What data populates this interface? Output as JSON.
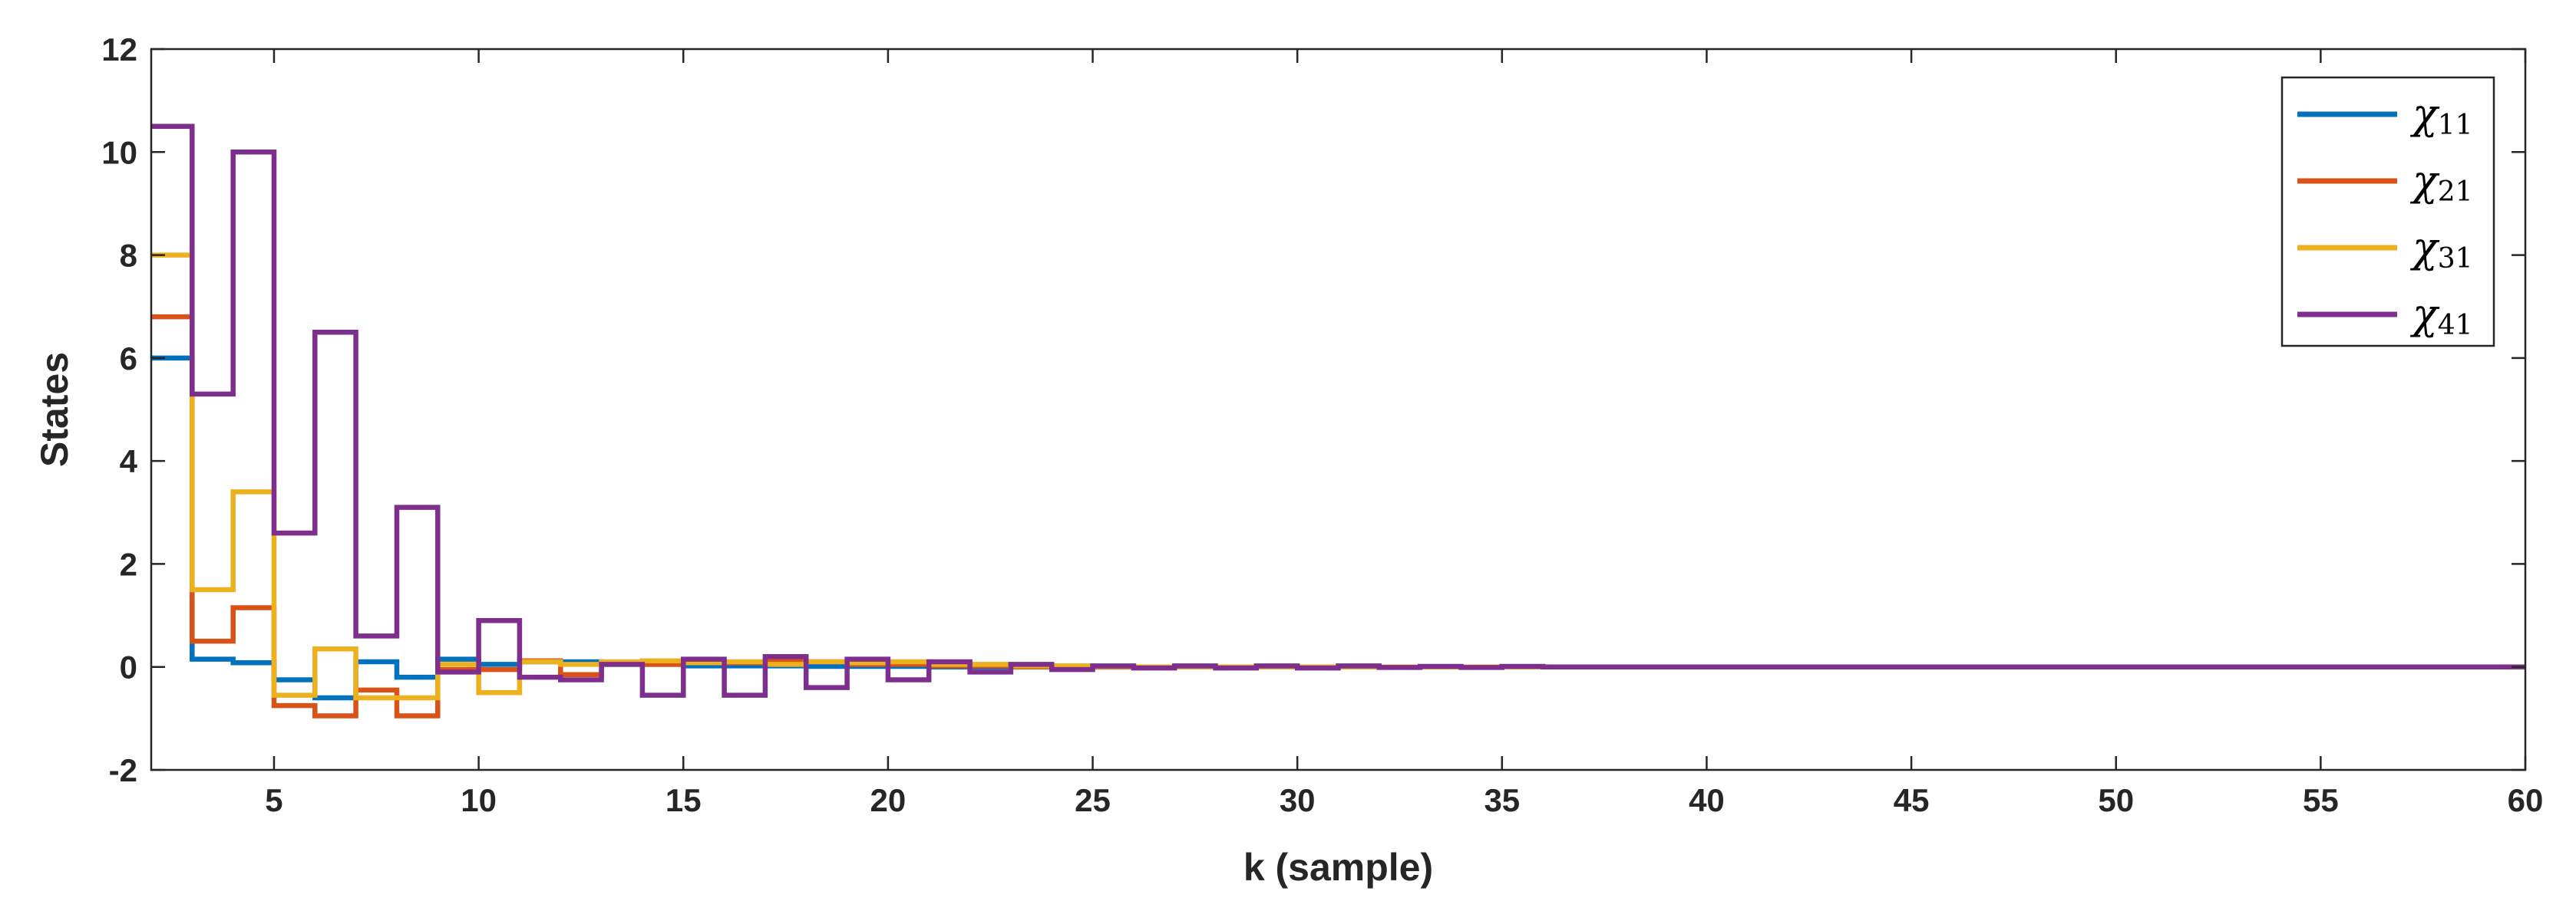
{
  "chart_data": {
    "type": "line",
    "step": true,
    "xlabel": "k (sample)",
    "ylabel": "States",
    "xlim": [
      2,
      60
    ],
    "ylim": [
      -2,
      12
    ],
    "xticks": [
      5,
      10,
      15,
      20,
      25,
      30,
      35,
      40,
      45,
      50,
      55,
      60
    ],
    "yticks": [
      -2,
      0,
      2,
      4,
      6,
      8,
      10,
      12
    ],
    "grid": false,
    "legend_position": "top-right",
    "x": [
      2,
      3,
      4,
      5,
      6,
      7,
      8,
      9,
      10,
      11,
      12,
      13,
      14,
      15,
      16,
      17,
      18,
      19,
      20,
      21,
      22,
      23,
      24,
      25,
      26,
      27,
      28,
      29,
      30,
      31,
      32,
      33,
      34,
      35,
      36,
      37,
      38,
      39,
      40,
      41,
      42,
      43,
      44,
      45,
      46,
      47,
      48,
      49,
      50,
      51,
      52,
      53,
      54,
      55,
      56,
      57,
      58,
      59,
      60
    ],
    "series": [
      {
        "name": "χ",
        "name_subscript": "11",
        "color": "#0072BD",
        "values": [
          6.0,
          0.15,
          0.08,
          -0.25,
          -0.6,
          0.1,
          -0.2,
          0.15,
          0.05,
          0.1,
          0.1,
          0.05,
          0.05,
          0.02,
          0.02,
          0.02,
          0.01,
          0.01,
          0.01,
          0,
          0,
          0,
          0,
          0,
          0,
          0,
          0,
          0,
          0,
          0,
          0,
          0,
          0,
          0,
          0,
          0,
          0,
          0,
          0,
          0,
          0,
          0,
          0,
          0,
          0,
          0,
          0,
          0,
          0,
          0,
          0,
          0,
          0,
          0,
          0,
          0,
          0,
          0,
          0
        ]
      },
      {
        "name": "χ",
        "name_subscript": "21",
        "color": "#D95319",
        "values": [
          6.8,
          0.5,
          1.15,
          -0.75,
          -0.95,
          -0.45,
          -0.95,
          -0.05,
          -0.05,
          0.12,
          -0.15,
          0.08,
          0.05,
          0.1,
          0.08,
          0.12,
          0.1,
          0.05,
          0.05,
          0.02,
          0.02,
          0,
          0,
          0,
          0,
          0,
          0,
          0,
          0,
          0,
          0,
          0,
          0,
          0,
          0,
          0,
          0,
          0,
          0,
          0,
          0,
          0,
          0,
          0,
          0,
          0,
          0,
          0,
          0,
          0,
          0,
          0,
          0,
          0,
          0,
          0,
          0,
          0,
          0
        ]
      },
      {
        "name": "χ",
        "name_subscript": "31",
        "color": "#EDB120",
        "values": [
          8.0,
          1.5,
          3.4,
          -0.55,
          0.35,
          -0.6,
          -0.6,
          0.05,
          -0.5,
          0.1,
          0.05,
          0.1,
          0.12,
          0.08,
          0.1,
          0.05,
          0.1,
          0.08,
          0.1,
          0.05,
          0.05,
          0.02,
          0.02,
          0.01,
          0,
          0,
          0,
          0,
          0,
          0,
          0,
          0,
          0,
          0,
          0,
          0,
          0,
          0,
          0,
          0,
          0,
          0,
          0,
          0,
          0,
          0,
          0,
          0,
          0,
          0,
          0,
          0,
          0,
          0,
          0,
          0,
          0,
          0,
          0
        ]
      },
      {
        "name": "χ",
        "name_subscript": "41",
        "color": "#7E2F8E",
        "values": [
          10.5,
          5.3,
          10.0,
          2.6,
          6.5,
          0.6,
          3.1,
          -0.1,
          0.9,
          -0.2,
          -0.25,
          0.05,
          -0.55,
          0.15,
          -0.55,
          0.2,
          -0.4,
          0.15,
          -0.25,
          0.1,
          -0.1,
          0.05,
          -0.05,
          0.02,
          -0.02,
          0.02,
          -0.02,
          0.02,
          -0.02,
          0.02,
          -0.01,
          0.01,
          -0.01,
          0.01,
          0,
          0,
          0,
          0,
          0,
          0,
          0,
          0,
          0,
          0,
          0,
          0,
          0,
          0,
          0,
          0,
          0,
          0,
          0,
          0,
          0,
          0,
          0,
          0,
          0
        ]
      }
    ]
  }
}
